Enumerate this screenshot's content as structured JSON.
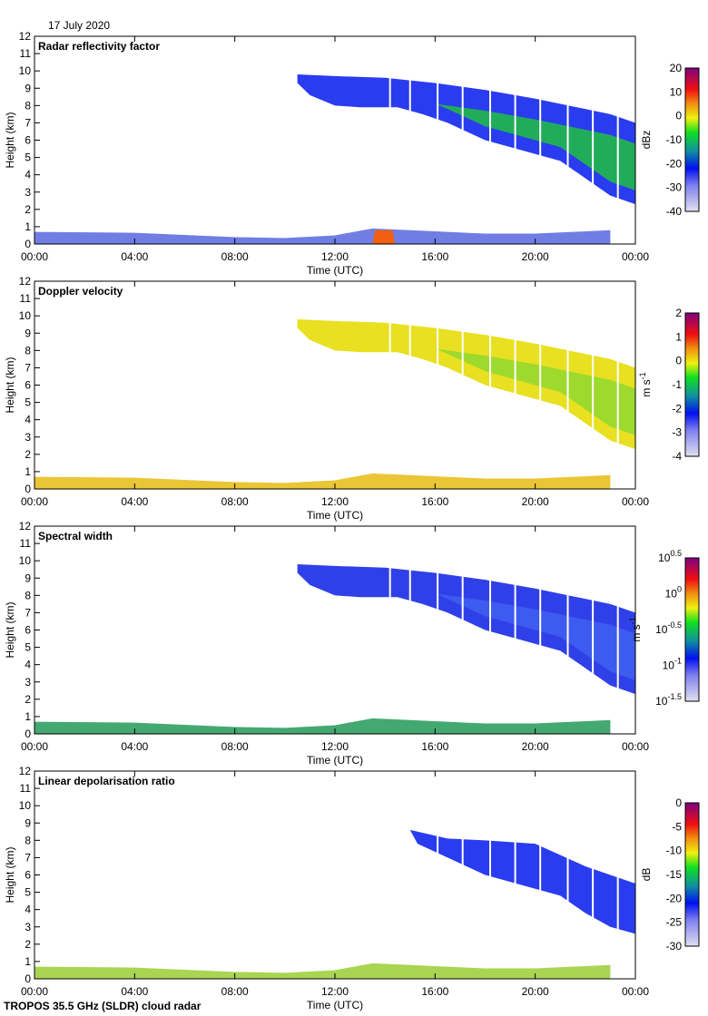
{
  "date_label": "17 July 2020",
  "footer": "TROPOS 35.5 GHz (SLDR) cloud radar",
  "chart_data": [
    {
      "type": "heatmap",
      "title": "Radar reflectivity factor",
      "xlabel": "Time (UTC)",
      "ylabel": "Height (km)",
      "xticks": [
        "00:00",
        "04:00",
        "08:00",
        "12:00",
        "16:00",
        "20:00",
        "00:00"
      ],
      "yticks": [
        0,
        1,
        2,
        3,
        4,
        5,
        6,
        7,
        8,
        9,
        10,
        11,
        12
      ],
      "ylim": [
        0,
        12
      ],
      "xlim_hours": [
        0,
        24
      ],
      "colorbar": {
        "unit": "dBz",
        "ticks": [
          "20",
          "10",
          "0",
          "-10",
          "-20",
          "-30",
          "-40"
        ],
        "range": [
          -40,
          20
        ]
      },
      "dominant_color": "#2a3cf0",
      "core_color": "#20c040"
    },
    {
      "type": "heatmap",
      "title": "Doppler velocity",
      "xlabel": "Time (UTC)",
      "ylabel": "Height (km)",
      "xticks": [
        "00:00",
        "04:00",
        "08:00",
        "12:00",
        "16:00",
        "20:00",
        "00:00"
      ],
      "yticks": [
        0,
        1,
        2,
        3,
        4,
        5,
        6,
        7,
        8,
        9,
        10,
        11,
        12
      ],
      "ylim": [
        0,
        12
      ],
      "xlim_hours": [
        0,
        24
      ],
      "colorbar": {
        "unit": "m s",
        "unit_sup": "-1",
        "ticks": [
          "2",
          "1",
          "0",
          "-1",
          "-2",
          "-3",
          "-4"
        ],
        "range": [
          -4,
          2
        ]
      },
      "dominant_color": "#e8e020",
      "core_color": "#90d830"
    },
    {
      "type": "heatmap",
      "title": "Spectral width",
      "xlabel": "Time (UTC)",
      "ylabel": "Height (km)",
      "xticks": [
        "00:00",
        "04:00",
        "08:00",
        "12:00",
        "16:00",
        "20:00",
        "00:00"
      ],
      "yticks": [
        0,
        1,
        2,
        3,
        4,
        5,
        6,
        7,
        8,
        9,
        10,
        11,
        12
      ],
      "ylim": [
        0,
        12
      ],
      "xlim_hours": [
        0,
        24
      ],
      "colorbar": {
        "unit": "m s",
        "unit_sup": "-1",
        "ticks": [
          [
            "10",
            "0.5"
          ],
          [
            "10",
            "0"
          ],
          [
            "10",
            "-0.5"
          ],
          [
            "10",
            "-1"
          ],
          [
            "10",
            "-1.5"
          ]
        ],
        "range": [
          -1.5,
          0.5
        ],
        "scale": "log"
      },
      "dominant_color": "#3040e8",
      "core_color": "#4060f0"
    },
    {
      "type": "heatmap",
      "title": "Linear depolarisation ratio",
      "xlabel": "Time (UTC)",
      "ylabel": "Height (km)",
      "xticks": [
        "00:00",
        "04:00",
        "08:00",
        "12:00",
        "16:00",
        "20:00",
        "00:00"
      ],
      "yticks": [
        0,
        1,
        2,
        3,
        4,
        5,
        6,
        7,
        8,
        9,
        10,
        11,
        12
      ],
      "ylim": [
        0,
        12
      ],
      "xlim_hours": [
        0,
        24
      ],
      "colorbar": {
        "unit": "dB",
        "ticks": [
          "0",
          "-5",
          "-10",
          "-15",
          "-20",
          "-25",
          "-30"
        ],
        "range": [
          -30,
          0
        ]
      },
      "dominant_color": "#2a3cf0",
      "core_color": "#3050f0"
    }
  ],
  "echo": {
    "upper_cloud_top": [
      [
        10.5,
        9.8
      ],
      [
        12,
        9.7
      ],
      [
        14,
        9.6
      ],
      [
        16,
        9.3
      ],
      [
        18,
        8.9
      ],
      [
        20,
        8.4
      ],
      [
        22,
        7.8
      ],
      [
        23,
        7.5
      ],
      [
        24,
        7.0
      ]
    ],
    "upper_cloud_base": [
      [
        24,
        2.3
      ],
      [
        23,
        2.8
      ],
      [
        22,
        3.8
      ],
      [
        21,
        4.8
      ],
      [
        20,
        5.2
      ],
      [
        18,
        6.0
      ],
      [
        16.5,
        7.0
      ],
      [
        15.5,
        7.5
      ],
      [
        14.5,
        7.9
      ],
      [
        13,
        7.9
      ],
      [
        12,
        8.0
      ],
      [
        11,
        8.6
      ],
      [
        10.5,
        9.3
      ]
    ],
    "ldr_cloud_top": [
      [
        15,
        8.6
      ],
      [
        16.5,
        8.1
      ],
      [
        18,
        8.0
      ],
      [
        20,
        7.8
      ],
      [
        22,
        6.5
      ],
      [
        23,
        6.0
      ],
      [
        24,
        5.5
      ]
    ],
    "ldr_cloud_base": [
      [
        24,
        2.6
      ],
      [
        23,
        3.0
      ],
      [
        22,
        3.8
      ],
      [
        21,
        4.8
      ],
      [
        20,
        5.2
      ],
      [
        18,
        6.0
      ],
      [
        16.5,
        7.0
      ],
      [
        15.3,
        7.8
      ]
    ],
    "low_layer_top": [
      [
        0,
        0.7
      ],
      [
        4,
        0.65
      ],
      [
        8,
        0.4
      ],
      [
        10,
        0.35
      ],
      [
        12,
        0.5
      ],
      [
        13.5,
        0.9
      ],
      [
        15,
        0.8
      ],
      [
        18,
        0.6
      ],
      [
        20,
        0.6
      ],
      [
        23,
        0.8
      ]
    ],
    "data_gaps_hours": [
      14.2,
      15.0,
      16.1,
      17.1,
      18.2,
      19.2,
      20.2,
      21.3,
      22.3,
      23.3
    ]
  }
}
